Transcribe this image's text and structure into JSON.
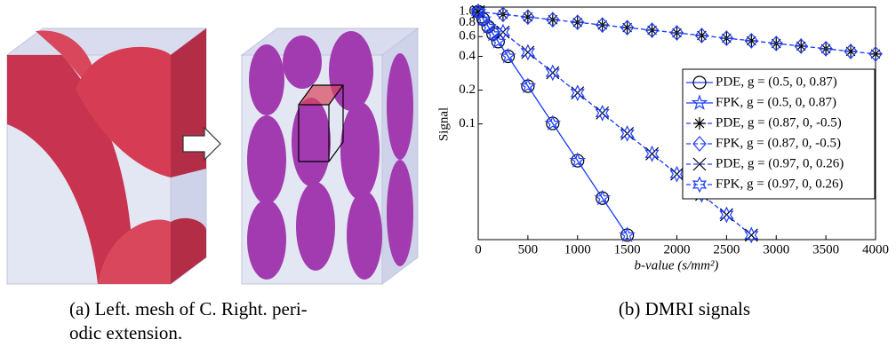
{
  "figure": {
    "caption_a": [
      "(a) Left. mesh of C. Right. peri-",
      "odic extension."
    ],
    "caption_b": "(b) DMRI signals"
  },
  "chart_data": {
    "type": "line",
    "xlabel": "b-value (s/mm²)",
    "ylabel": "Signal",
    "log_y": true,
    "xlim": [
      0,
      4000
    ],
    "xticks": [
      0,
      500,
      1000,
      1500,
      2000,
      2500,
      3000,
      3500,
      4000
    ],
    "ylim": [
      0.0093,
      1.1
    ],
    "yticks": [
      0.1,
      0.2,
      0.4,
      0.6,
      0.8,
      {
        "value": 1,
        "label": "1.0"
      }
    ],
    "legend": "upper right",
    "series": [
      {
        "name": "PDE, g = (0.5, 0, 0.87)",
        "color": "#1f3fff",
        "marker": "circle",
        "marker_color": "#000000",
        "dash": false,
        "x": [
          0,
          50,
          100,
          150,
          200,
          300,
          500,
          750,
          1000,
          1250,
          1500
        ],
        "values": [
          1,
          0.858,
          0.736,
          0.632,
          0.542,
          0.4,
          0.217,
          0.101,
          0.047,
          0.0218,
          0.0102
        ]
      },
      {
        "name": "FPK, g = (0.5, 0, 0.87)",
        "color": "#1f3fff",
        "marker": "star",
        "marker_color": "#1f3fff",
        "dash": false,
        "x": [
          0,
          50,
          100,
          150,
          200,
          300,
          500,
          750,
          1000,
          1250,
          1500
        ],
        "values": [
          1,
          0.858,
          0.736,
          0.632,
          0.542,
          0.4,
          0.217,
          0.101,
          0.047,
          0.0218,
          0.0102
        ]
      },
      {
        "name": "PDE, g = (0.87, 0, -0.5)",
        "color": "#1f3fff",
        "marker": "asterisk",
        "marker_color": "#000000",
        "dash": true,
        "x": [
          0,
          250,
          500,
          750,
          1000,
          1250,
          1500,
          1750,
          2000,
          2250,
          2500,
          2750,
          3000,
          3250,
          3500,
          3750,
          4000
        ],
        "values": [
          1,
          0.947,
          0.897,
          0.85,
          0.805,
          0.762,
          0.722,
          0.684,
          0.648,
          0.614,
          0.581,
          0.551,
          0.521,
          0.494,
          0.468,
          0.443,
          0.42
        ]
      },
      {
        "name": "FPK, g = (0.87, 0, -0.5)",
        "color": "#1f3fff",
        "marker": "diamond",
        "marker_color": "#1f3fff",
        "dash": true,
        "x": [
          0,
          250,
          500,
          750,
          1000,
          1250,
          1500,
          1750,
          2000,
          2250,
          2500,
          2750,
          3000,
          3250,
          3500,
          3750,
          4000
        ],
        "values": [
          1,
          0.947,
          0.897,
          0.85,
          0.805,
          0.762,
          0.722,
          0.684,
          0.648,
          0.614,
          0.581,
          0.551,
          0.521,
          0.494,
          0.468,
          0.443,
          0.42
        ]
      },
      {
        "name": "PDE, g = (0.97, 0, 0.26)",
        "color": "#1f3fff",
        "marker": "x",
        "marker_color": "#000000",
        "dash": true,
        "x": [
          0,
          250,
          500,
          750,
          1000,
          1250,
          1500,
          1750,
          2000,
          2250,
          2500,
          2750
        ],
        "values": [
          1,
          0.659,
          0.435,
          0.286,
          0.189,
          0.125,
          0.0821,
          0.0541,
          0.0357,
          0.0235,
          0.0155,
          0.0102
        ]
      },
      {
        "name": "FPK, g = (0.97, 0, 0.26)",
        "color": "#1f3fff",
        "marker": "hexagram",
        "marker_color": "#1f3fff",
        "dash": true,
        "x": [
          0,
          250,
          500,
          750,
          1000,
          1250,
          1500,
          1750,
          2000,
          2250,
          2500,
          2750
        ],
        "values": [
          1,
          0.659,
          0.435,
          0.286,
          0.189,
          0.125,
          0.0821,
          0.0541,
          0.0357,
          0.0235,
          0.0155,
          0.0102
        ]
      }
    ]
  }
}
